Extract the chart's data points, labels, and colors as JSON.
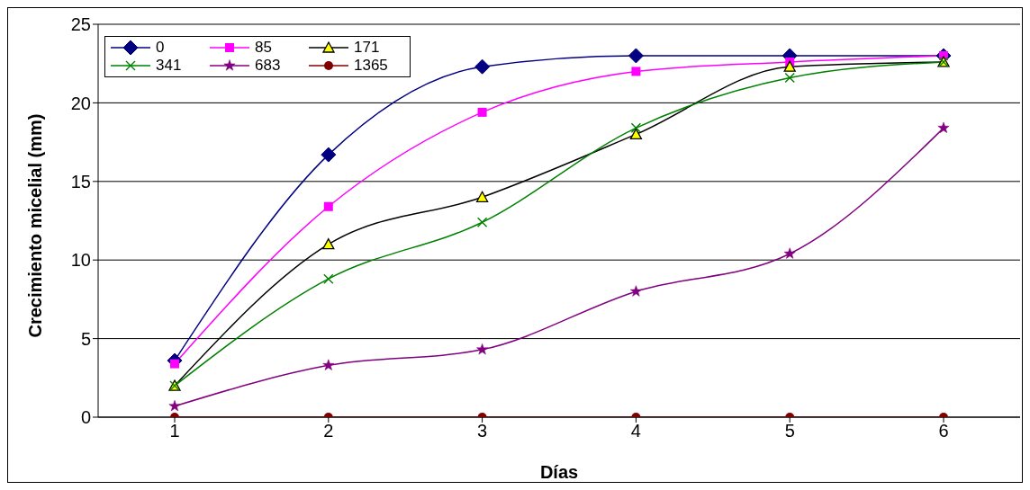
{
  "chart_data": {
    "type": "line",
    "xlabel": "Días",
    "ylabel": "Crecimiento micelial (mm)",
    "categories": [
      "1",
      "2",
      "3",
      "4",
      "5",
      "6"
    ],
    "ylim": [
      0,
      25
    ],
    "yticks": [
      0,
      5,
      10,
      15,
      20,
      25
    ],
    "grid": "y",
    "legend": "top left",
    "series": [
      {
        "name": "0",
        "color": "#000080",
        "marker": "diamond",
        "values": [
          3.6,
          16.7,
          22.3,
          23.0,
          23.0,
          23.0
        ]
      },
      {
        "name": "85",
        "color": "#ff00ff",
        "marker": "square",
        "values": [
          3.4,
          13.4,
          19.4,
          22.0,
          22.6,
          23.0
        ]
      },
      {
        "name": "171",
        "color": "#000000",
        "marker": "triangle",
        "values": [
          2.0,
          11.0,
          14.0,
          18.0,
          22.3,
          22.6
        ]
      },
      {
        "name": "341",
        "color": "#008000",
        "marker": "cross",
        "values": [
          2.0,
          8.8,
          12.4,
          18.4,
          21.6,
          22.6
        ]
      },
      {
        "name": "683",
        "color": "#800080",
        "marker": "star",
        "values": [
          0.7,
          3.3,
          4.3,
          8.0,
          10.4,
          18.4
        ]
      },
      {
        "name": "1365",
        "color": "#800000",
        "marker": "circle",
        "values": [
          0,
          0,
          0,
          0,
          0,
          0
        ]
      }
    ]
  }
}
